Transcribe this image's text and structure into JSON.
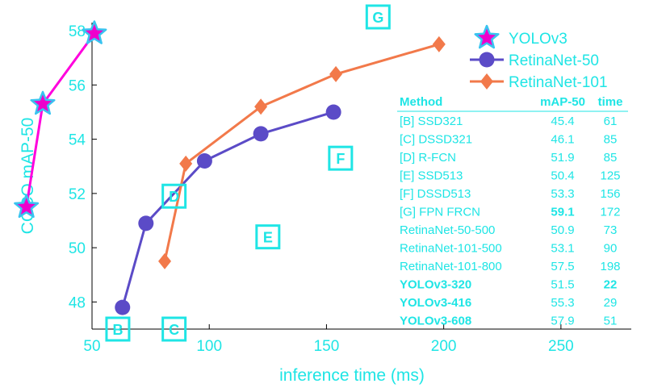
{
  "chart_data": {
    "type": "line",
    "xlabel": "inference time (ms)",
    "ylabel": "COCO mAP-50",
    "xlim": [
      50,
      280
    ],
    "ylim": [
      47,
      58.3
    ],
    "x_ticks": [
      50,
      100,
      150,
      200,
      250
    ],
    "y_ticks": [
      48,
      50,
      52,
      54,
      56,
      58
    ],
    "grid": false,
    "legend_position": "top-right",
    "series": [
      {
        "name": "YOLOv3",
        "marker": "star",
        "color": "#ff00dd",
        "marker_color": "#ee00cc",
        "marker_edge": "#39c4f0",
        "x": [
          22,
          29,
          51
        ],
        "y": [
          51.5,
          55.3,
          57.9
        ]
      },
      {
        "name": "RetinaNet-50",
        "marker": "circle",
        "color": "#5b4bc7",
        "marker_color": "#5b4bc7",
        "x": [
          63,
          73,
          98,
          122,
          153
        ],
        "y": [
          47.8,
          50.9,
          53.2,
          54.2,
          55.0
        ]
      },
      {
        "name": "RetinaNet-101",
        "marker": "diamond",
        "color": "#f2794a",
        "marker_color": "#f2794a",
        "x": [
          81,
          90,
          122,
          154,
          198
        ],
        "y": [
          49.5,
          53.1,
          55.2,
          56.4,
          57.5
        ]
      }
    ],
    "point_markers": [
      {
        "label": "B",
        "x": 61,
        "y": 47.0
      },
      {
        "label": "C",
        "x": 85,
        "y": 47.0
      },
      {
        "label": "D",
        "x": 85,
        "y": 51.9
      },
      {
        "label": "E",
        "x": 125,
        "y": 50.4
      },
      {
        "label": "F",
        "x": 156,
        "y": 53.3
      },
      {
        "label": "G",
        "x": 172,
        "y": 59.1
      }
    ],
    "table": {
      "headers": [
        "Method",
        "mAP-50",
        "time"
      ],
      "rows": [
        {
          "method": "[B] SSD321",
          "map": "45.4",
          "time": "61",
          "bold_method": false,
          "bold_map": false,
          "bold_time": false
        },
        {
          "method": "[C] DSSD321",
          "map": "46.1",
          "time": "85",
          "bold_method": false,
          "bold_map": false,
          "bold_time": false
        },
        {
          "method": "[D] R-FCN",
          "map": "51.9",
          "time": "85",
          "bold_method": false,
          "bold_map": false,
          "bold_time": false
        },
        {
          "method": "[E] SSD513",
          "map": "50.4",
          "time": "125",
          "bold_method": false,
          "bold_map": false,
          "bold_time": false
        },
        {
          "method": "[F] DSSD513",
          "map": "53.3",
          "time": "156",
          "bold_method": false,
          "bold_map": false,
          "bold_time": false
        },
        {
          "method": "[G] FPN FRCN",
          "map": "59.1",
          "time": "172",
          "bold_method": false,
          "bold_map": true,
          "bold_time": false
        },
        {
          "method": "RetinaNet-50-500",
          "map": "50.9",
          "time": "73",
          "bold_method": false,
          "bold_map": false,
          "bold_time": false
        },
        {
          "method": "RetinaNet-101-500",
          "map": "53.1",
          "time": "90",
          "bold_method": false,
          "bold_map": false,
          "bold_time": false
        },
        {
          "method": "RetinaNet-101-800",
          "map": "57.5",
          "time": "198",
          "bold_method": false,
          "bold_map": false,
          "bold_time": false
        },
        {
          "method": "YOLOv3-320",
          "map": "51.5",
          "time": "22",
          "bold_method": true,
          "bold_map": false,
          "bold_time": true
        },
        {
          "method": "YOLOv3-416",
          "map": "55.3",
          "time": "29",
          "bold_method": true,
          "bold_map": false,
          "bold_time": false
        },
        {
          "method": "YOLOv3-608",
          "map": "57.9",
          "time": "51",
          "bold_method": true,
          "bold_map": false,
          "bold_time": false
        }
      ]
    }
  },
  "colors": {
    "axis_text": "#1fe5e5",
    "axis_line": "#000000"
  }
}
